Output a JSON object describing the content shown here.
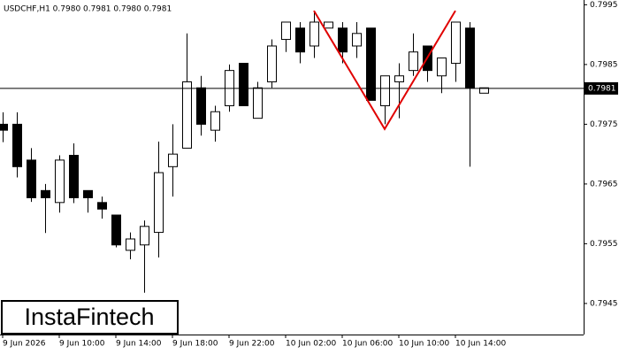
{
  "chart_data": {
    "type": "candlestick",
    "title": "USDCHF,H1  0.7980 0.7981 0.7980 0.7981",
    "categories": [
      "9 Jun 2026",
      null,
      null,
      null,
      "9 Jun 10:00",
      null,
      null,
      null,
      "9 Jun 14:00",
      null,
      null,
      null,
      "9 Jun 18:00",
      null,
      null,
      null,
      "9 Jun 22:00",
      null,
      null,
      null,
      "10 Jun 02:00",
      null,
      null,
      null,
      "10 Jun 06:00",
      null,
      null,
      null,
      "10 Jun 10:00",
      null,
      null,
      null,
      "10 Jun 14:00",
      null,
      null
    ],
    "open": [
      0.7975,
      0.7975,
      0.7969,
      0.79639,
      0.79619,
      0.79698,
      0.79639,
      0.79619,
      0.79598,
      0.79539,
      0.79548,
      0.79569,
      0.79679,
      0.7971,
      0.79811,
      0.7974,
      0.79781,
      0.79852,
      0.7976,
      0.79821,
      0.79892,
      0.79911,
      0.79881,
      0.79911,
      0.79911,
      0.79881,
      0.79911,
      0.79781,
      0.79821,
      0.7984,
      0.79881,
      0.79831,
      0.79852,
      0.79911,
      0.79802
    ],
    "high": [
      0.7977,
      0.7977,
      0.7971,
      0.7965,
      0.79698,
      0.79718,
      0.79639,
      0.79629,
      0.79598,
      0.79569,
      0.79589,
      0.79721,
      0.7975,
      0.79902,
      0.79831,
      0.79781,
      0.7985,
      0.79852,
      0.79821,
      0.79892,
      0.79921,
      0.79921,
      0.7994,
      0.79921,
      0.79921,
      0.79921,
      0.79911,
      0.79831,
      0.79852,
      0.79902,
      0.79881,
      0.79861,
      0.79921,
      0.79921,
      0.79811
    ],
    "low": [
      0.7972,
      0.79661,
      0.7962,
      0.79568,
      0.79602,
      0.79618,
      0.79602,
      0.79592,
      0.79544,
      0.79524,
      0.79468,
      0.79527,
      0.79629,
      0.7971,
      0.79731,
      0.79721,
      0.79771,
      0.79781,
      0.7976,
      0.79811,
      0.79871,
      0.79852,
      0.79861,
      0.79911,
      0.79852,
      0.79861,
      0.7979,
      0.7975,
      0.7976,
      0.79831,
      0.79821,
      0.79802,
      0.79821,
      0.79679,
      0.79802
    ],
    "close": [
      0.7974,
      0.79679,
      0.79627,
      0.79627,
      0.7969,
      0.79627,
      0.79627,
      0.79608,
      0.79548,
      0.79558,
      0.79579,
      0.79669,
      0.797,
      0.79821,
      0.7975,
      0.79771,
      0.7984,
      0.79781,
      0.79811,
      0.79881,
      0.79921,
      0.79871,
      0.79921,
      0.79921,
      0.79871,
      0.79902,
      0.7979,
      0.79831,
      0.79831,
      0.79871,
      0.7984,
      0.79861,
      0.79921,
      0.79811,
      0.79811
    ],
    "up_color": "#ffffff",
    "down_color": "#000000",
    "ylim": [
      0.79398,
      0.79958
    ],
    "yticks": [
      0.7995,
      0.7985,
      0.7975,
      0.7965,
      0.7955,
      0.7945
    ],
    "current_price": 0.7981,
    "pattern": {
      "color": "#e00000",
      "x": [
        22,
        27,
        32
      ],
      "values": [
        0.7994,
        0.79742,
        0.7994
      ]
    }
  },
  "logo": "InstaFintech"
}
